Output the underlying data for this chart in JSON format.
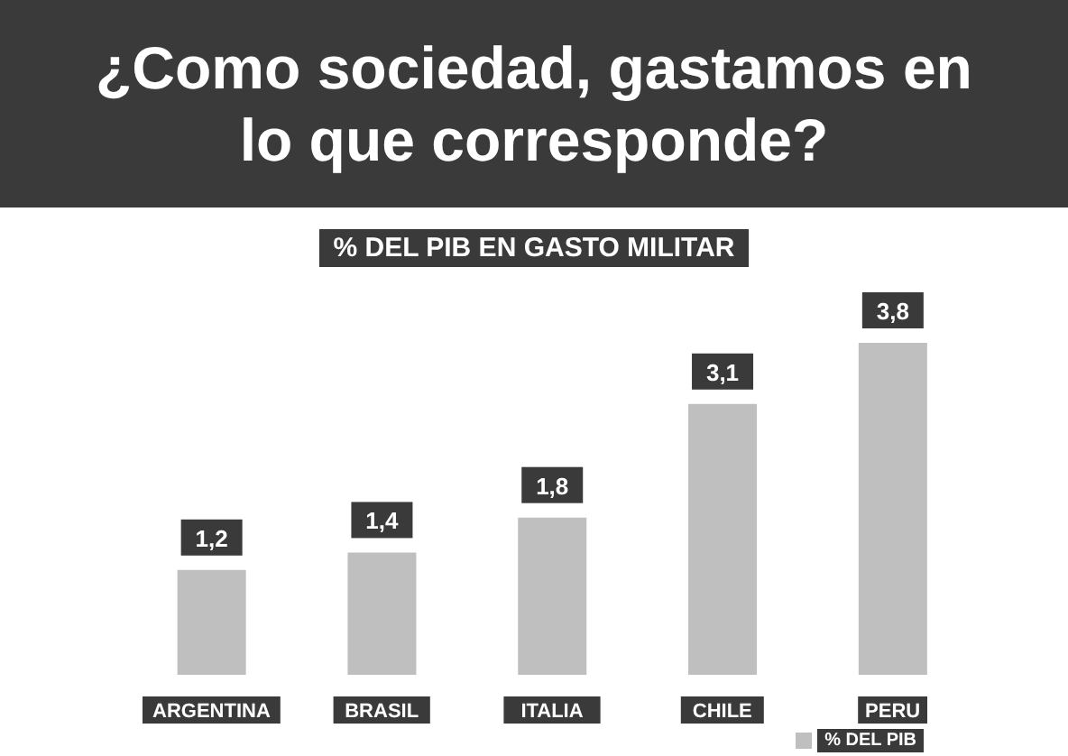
{
  "chart_data": {
    "type": "bar",
    "title": "¿Como sociedad, gastamos en lo que corresponde?",
    "subtitle": "% DEL PIB EN GASTO MILITAR",
    "categories": [
      "ARGENTINA",
      "BRASIL",
      "ITALIA",
      "CHILE",
      "PERU"
    ],
    "series": [
      {
        "name": "% DEL PIB",
        "color": "#bfbfbf",
        "values": [
          1.2,
          1.4,
          1.8,
          3.1,
          3.8
        ],
        "value_labels": [
          "1,2",
          "1,4",
          "1,8",
          "3,1",
          "3,8"
        ]
      }
    ],
    "legend": "bottom right",
    "grid": false
  }
}
